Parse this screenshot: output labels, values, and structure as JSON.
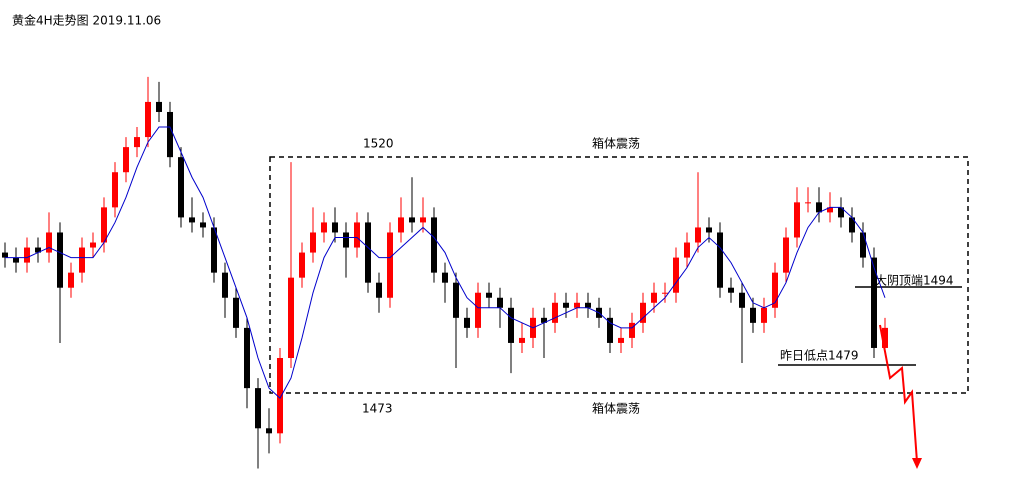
{
  "chart_data": {
    "type": "candlestick",
    "title": "黄金4H走势图 2019.11.06",
    "up_color": "#ff0000",
    "down_color": "#000000",
    "ylim": [
      1456.3,
      1551.3
    ],
    "open": [
      1501,
      1500,
      1499,
      1502,
      1501,
      1505,
      1494,
      1497,
      1502,
      1503,
      1510,
      1517,
      1522,
      1524,
      1531,
      1529,
      1520,
      1508,
      1507,
      1506,
      1497,
      1492,
      1486,
      1474,
      1466,
      1465,
      1480,
      1496,
      1501,
      1505,
      1507,
      1505,
      1502,
      1507,
      1495,
      1492,
      1505,
      1508,
      1507,
      1508,
      1497,
      1495,
      1488,
      1486,
      1493,
      1492,
      1490,
      1483,
      1484,
      1488,
      1487,
      1491,
      1490,
      1491,
      1490,
      1488,
      1483,
      1484,
      1487,
      1491,
      1493,
      1493,
      1500,
      1503,
      1506,
      1505,
      1494,
      1493,
      1490,
      1487,
      1490,
      1497,
      1504,
      1511,
      1511,
      1509,
      1510,
      1508,
      1505,
      1500,
      1482
    ],
    "high": [
      1503,
      1502,
      1504,
      1504,
      1509,
      1507,
      1499,
      1504,
      1505,
      1512,
      1519,
      1524,
      1526,
      1536,
      1535,
      1531,
      1522,
      1512,
      1509,
      1508,
      1499,
      1494,
      1488,
      1476,
      1470,
      1482,
      1519,
      1503,
      1510,
      1509,
      1510,
      1507,
      1509,
      1509,
      1497,
      1507,
      1512,
      1516,
      1512,
      1510,
      1499,
      1497,
      1490,
      1495,
      1495,
      1494,
      1492,
      1487,
      1490,
      1490,
      1493,
      1493,
      1493,
      1493,
      1492,
      1490,
      1486,
      1489,
      1493,
      1495,
      1495,
      1502,
      1505,
      1517,
      1508,
      1507,
      1496,
      1495,
      1492,
      1492,
      1499,
      1506,
      1514,
      1514,
      1514,
      1513,
      1512,
      1510,
      1507,
      1502,
      1488
    ],
    "low": [
      1498,
      1497,
      1497,
      1499,
      1499,
      1483,
      1492,
      1495,
      1500,
      1501,
      1508,
      1515,
      1520,
      1522,
      1527,
      1518,
      1506,
      1505,
      1504,
      1495,
      1488,
      1484,
      1470,
      1458,
      1461,
      1463,
      1478,
      1494,
      1499,
      1503,
      1503,
      1496,
      1500,
      1493,
      1489,
      1490,
      1503,
      1505,
      1505,
      1495,
      1491,
      1478,
      1484,
      1484,
      1490,
      1486,
      1477,
      1481,
      1482,
      1480,
      1485,
      1488,
      1488,
      1488,
      1486,
      1481,
      1481,
      1482,
      1485,
      1489,
      1491,
      1491,
      1498,
      1501,
      1503,
      1492,
      1491,
      1479,
      1485,
      1485,
      1488,
      1495,
      1502,
      1509,
      1507,
      1507,
      1506,
      1503,
      1498,
      1480,
      1481
    ],
    "close": [
      1500,
      1499,
      1502,
      1501,
      1505,
      1494,
      1497,
      1502,
      1503,
      1510,
      1517,
      1522,
      1524,
      1531,
      1529,
      1520,
      1508,
      1507,
      1506,
      1497,
      1492,
      1486,
      1474,
      1466,
      1465,
      1480,
      1496,
      1501,
      1505,
      1507,
      1505,
      1502,
      1507,
      1495,
      1492,
      1505,
      1508,
      1507,
      1508,
      1497,
      1495,
      1488,
      1486,
      1493,
      1492,
      1490,
      1483,
      1484,
      1488,
      1487,
      1491,
      1490,
      1491,
      1490,
      1488,
      1483,
      1484,
      1487,
      1491,
      1493,
      1493,
      1500,
      1503,
      1506,
      1505,
      1494,
      1493,
      1490,
      1487,
      1490,
      1497,
      1504,
      1511,
      1511,
      1509,
      1510,
      1508,
      1505,
      1500,
      1482,
      1486
    ],
    "ma": {
      "color": "#0000cc",
      "values": [
        1500,
        1500,
        1500,
        1501,
        1502,
        1501,
        1500,
        1500,
        1500,
        1503,
        1507,
        1512,
        1518,
        1523,
        1526,
        1526,
        1521,
        1516,
        1512,
        1506,
        1500,
        1494,
        1488,
        1480,
        1474,
        1472,
        1476,
        1484,
        1493,
        1500,
        1504,
        1504,
        1504,
        1502,
        1500,
        1500,
        1502,
        1504,
        1506,
        1504,
        1501,
        1496,
        1492,
        1490,
        1490,
        1490,
        1488,
        1487,
        1486,
        1487,
        1488,
        1489,
        1490,
        1490,
        1489,
        1487,
        1486,
        1486,
        1488,
        1490,
        1492,
        1495,
        1498,
        1502,
        1504,
        1502,
        1499,
        1495,
        1491,
        1490,
        1491,
        1495,
        1501,
        1506,
        1509,
        1510,
        1510,
        1508,
        1505,
        1498,
        1492
      ]
    },
    "annotations": [
      "1520",
      "箱体震荡",
      "1473",
      "箱体震荡",
      "大阴顶端1494",
      "昨日低点1479"
    ]
  }
}
